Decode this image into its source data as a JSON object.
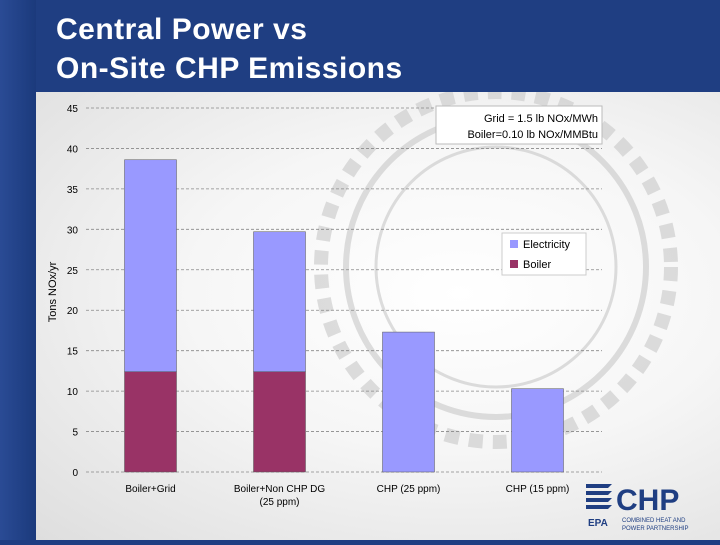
{
  "slide": {
    "title_line1": "Central Power vs",
    "title_line2": "On-Site CHP Emissions"
  },
  "chart_data": {
    "type": "bar",
    "stacked": true,
    "categories": [
      "Boiler+Grid",
      "Boiler+Non CHP DG (25 ppm)",
      "CHP (25 ppm)",
      "CHP (15 ppm)"
    ],
    "category_label_lines": [
      [
        "Boiler+Grid"
      ],
      [
        "Boiler+Non CHP DG",
        "(25 ppm)"
      ],
      [
        "CHP (25 ppm)"
      ],
      [
        "CHP (15 ppm)"
      ]
    ],
    "series": [
      {
        "name": "Boiler",
        "color": "#993366",
        "values": [
          12.4,
          12.4,
          0,
          0
        ]
      },
      {
        "name": "Electricity",
        "color": "#9999ff",
        "values": [
          26.2,
          17.3,
          17.3,
          10.3
        ]
      }
    ],
    "ylabel": "Tons NOx/yr",
    "xlabel": "",
    "ylim": [
      0,
      45
    ],
    "yticks": [
      0,
      5,
      10,
      15,
      20,
      25,
      30,
      35,
      40,
      45
    ],
    "grid": true,
    "legend_position": "right",
    "annotation_lines": [
      "Grid = 1.5 lb NOx/MWh",
      "Boiler=0.10 lb NOx/MMBtu"
    ]
  },
  "logo": {
    "text": "CHP",
    "agency": "EPA",
    "tagline_line1": "COMBINED HEAT AND",
    "tagline_line2": "POWER PARTNERSHIP",
    "brand_color": "#1f3e82"
  }
}
